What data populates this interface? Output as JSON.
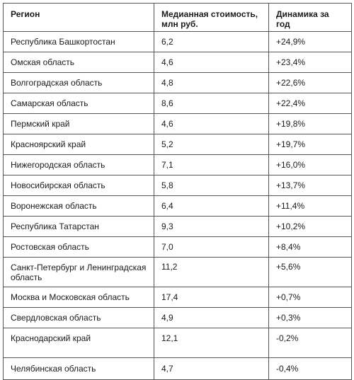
{
  "table": {
    "headers": [
      "Регион",
      "Медианная стоимость, млн руб.",
      "Динамика за год"
    ],
    "rows": [
      [
        "Республика Башкортостан",
        "6,2",
        "+24,9%"
      ],
      [
        "Омская область",
        "4,6",
        "+23,4%"
      ],
      [
        "Волгоградская область",
        "4,8",
        "+22,6%"
      ],
      [
        "Самарская область",
        "8,6",
        "+22,4%"
      ],
      [
        "Пермский край",
        "4,6",
        "+19,8%"
      ],
      [
        "Красноярский край",
        "5,2",
        "+19,7%"
      ],
      [
        "Нижегородская область",
        "7,1",
        "+16,0%"
      ],
      [
        "Новосибирская область",
        "5,8",
        "+13,7%"
      ],
      [
        "Воронежская область",
        "6,4",
        "+11,4%"
      ],
      [
        "Республика Татарстан",
        "9,3",
        "+10,2%"
      ],
      [
        "Ростовская область",
        "7,0",
        "+8,4%"
      ],
      [
        "Санкт-Петербург и Ленинградская область",
        "11,2",
        "+5,6%"
      ],
      [
        "Москва и Московская область",
        "17,4",
        "+0,7%"
      ],
      [
        "Свердловская область",
        "4,9",
        "+0,3%"
      ],
      [
        "Краснодарский край",
        "12,1",
        "-0,2%"
      ],
      [
        "Челябинская область",
        "4,7",
        "-0,4%"
      ]
    ]
  }
}
